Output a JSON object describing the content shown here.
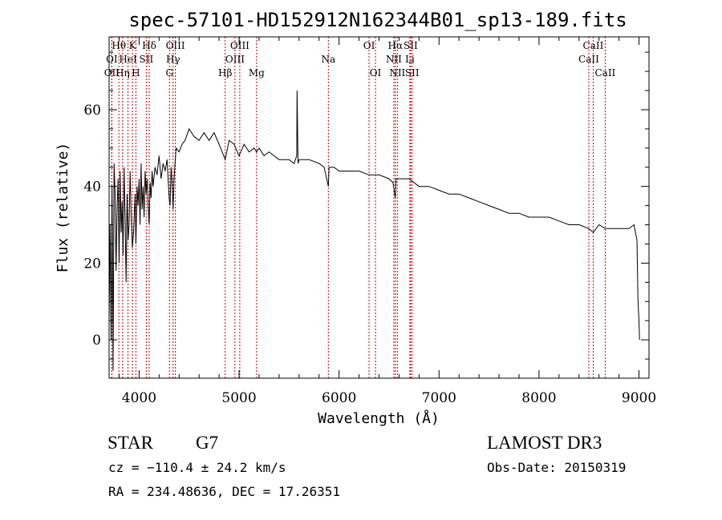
{
  "chart_data": {
    "type": "line",
    "title": "spec-57101-HD152912N162344B01_sp13-189.fits",
    "xlabel": "Wavelength (Å)",
    "ylabel": "Flux (relative)",
    "xlim": [
      3700,
      9100
    ],
    "ylim": [
      -10,
      79
    ],
    "xticks": [
      4000,
      5000,
      6000,
      7000,
      8000,
      9000
    ],
    "yticks": [
      0,
      20,
      40,
      60
    ],
    "series": [
      {
        "name": "flux",
        "x": [
          3700,
          3710,
          3720,
          3730,
          3740,
          3750,
          3760,
          3770,
          3780,
          3790,
          3800,
          3810,
          3820,
          3830,
          3840,
          3850,
          3860,
          3870,
          3880,
          3890,
          3900,
          3910,
          3920,
          3933,
          3945,
          3960,
          3968,
          3980,
          3990,
          4000,
          4010,
          4020,
          4030,
          4040,
          4050,
          4060,
          4070,
          4080,
          4090,
          4101,
          4110,
          4120,
          4130,
          4140,
          4160,
          4180,
          4200,
          4220,
          4240,
          4260,
          4280,
          4300,
          4310,
          4320,
          4330,
          4340,
          4350,
          4370,
          4400,
          4430,
          4460,
          4500,
          4550,
          4600,
          4650,
          4700,
          4750,
          4800,
          4861,
          4900,
          4950,
          5000,
          5050,
          5100,
          5150,
          5175,
          5200,
          5250,
          5300,
          5350,
          5400,
          5450,
          5500,
          5550,
          5577,
          5580,
          5590,
          5600,
          5650,
          5700,
          5800,
          5850,
          5893,
          5900,
          5950,
          6000,
          6100,
          6200,
          6300,
          6400,
          6500,
          6540,
          6563,
          6570,
          6600,
          6700,
          6800,
          6900,
          7000,
          7100,
          7200,
          7300,
          7400,
          7500,
          7600,
          7700,
          7800,
          7900,
          8000,
          8100,
          8200,
          8300,
          8400,
          8498,
          8542,
          8600,
          8662,
          8700,
          8800,
          8900,
          8950,
          8980,
          8990,
          9000,
          9005
        ],
        "y": [
          5,
          30,
          0,
          40,
          -8,
          46,
          38,
          18,
          35,
          42,
          20,
          44,
          28,
          36,
          22,
          45,
          32,
          15,
          38,
          26,
          30,
          44,
          33,
          24,
          28,
          38,
          25,
          40,
          35,
          42,
          30,
          46,
          34,
          40,
          32,
          44,
          38,
          42,
          35,
          30,
          41,
          37,
          44,
          40,
          45,
          43,
          48,
          42,
          46,
          44,
          47,
          37,
          35,
          45,
          41,
          34,
          42,
          50,
          49,
          51,
          52,
          55,
          53,
          52,
          54,
          52,
          54,
          51,
          47,
          52,
          51,
          48,
          51,
          49,
          50,
          49,
          50,
          48,
          49,
          48,
          47,
          47,
          47,
          46,
          48,
          65,
          46,
          47,
          47,
          47,
          46,
          45,
          40,
          45,
          45,
          44,
          44,
          44,
          43,
          43,
          42,
          41,
          37,
          42,
          42,
          42,
          40,
          40,
          39,
          38,
          38,
          37,
          36,
          35,
          34,
          33,
          33,
          32,
          32,
          32,
          31,
          30,
          30,
          29,
          28,
          30,
          29,
          29,
          29,
          29,
          30,
          26,
          10,
          5,
          0
        ]
      }
    ],
    "spectral_lines": [
      {
        "label": "OII",
        "wavelength": 3727,
        "row": 3
      },
      {
        "label": "OI",
        "wavelength": 3727,
        "row": 2
      },
      {
        "label": "Hθ",
        "wavelength": 3798,
        "row": 1
      },
      {
        "label": "Hη",
        "wavelength": 3835,
        "row": 3
      },
      {
        "label": "HeI",
        "wavelength": 3889,
        "row": 2
      },
      {
        "label": "K",
        "wavelength": 3934,
        "row": 1
      },
      {
        "label": "H",
        "wavelength": 3968,
        "row": 3
      },
      {
        "label": "SII",
        "wavelength": 4072,
        "row": 2
      },
      {
        "label": "Hδ",
        "wavelength": 4101,
        "row": 1
      },
      {
        "label": "G",
        "wavelength": 4304,
        "row": 3
      },
      {
        "label": "Hγ",
        "wavelength": 4340,
        "row": 2
      },
      {
        "label": "OIII",
        "wavelength": 4363,
        "row": 1
      },
      {
        "label": "Hβ",
        "wavelength": 4861,
        "row": 3
      },
      {
        "label": "OIII",
        "wavelength": 4959,
        "row": 2
      },
      {
        "label": "OIII",
        "wavelength": 5007,
        "row": 1
      },
      {
        "label": "Mg",
        "wavelength": 5175,
        "row": 3
      },
      {
        "label": "Na",
        "wavelength": 5893,
        "row": 2
      },
      {
        "label": "OI",
        "wavelength": 6300,
        "row": 1
      },
      {
        "label": "OI",
        "wavelength": 6364,
        "row": 3
      },
      {
        "label": "NII",
        "wavelength": 6548,
        "row": 2
      },
      {
        "label": "Hα",
        "wavelength": 6563,
        "row": 1
      },
      {
        "label": "NII",
        "wavelength": 6583,
        "row": 3
      },
      {
        "label": "Li",
        "wavelength": 6708,
        "row": 2
      },
      {
        "label": "SII",
        "wavelength": 6716,
        "row": 1
      },
      {
        "label": "SII",
        "wavelength": 6731,
        "row": 3
      },
      {
        "label": "CaII",
        "wavelength": 8498,
        "row": 2
      },
      {
        "label": "CaII",
        "wavelength": 8542,
        "row": 1
      },
      {
        "label": "CaII",
        "wavelength": 8662,
        "row": 3
      }
    ]
  },
  "info": {
    "object_class": "STAR",
    "subclass": "G7",
    "survey": "LAMOST DR3",
    "redshift": "cz = −110.4 ± 24.2 km/s",
    "obs_date": "Obs-Date: 20150319",
    "coords": "RA = 234.48636, DEC =  17.26351"
  }
}
